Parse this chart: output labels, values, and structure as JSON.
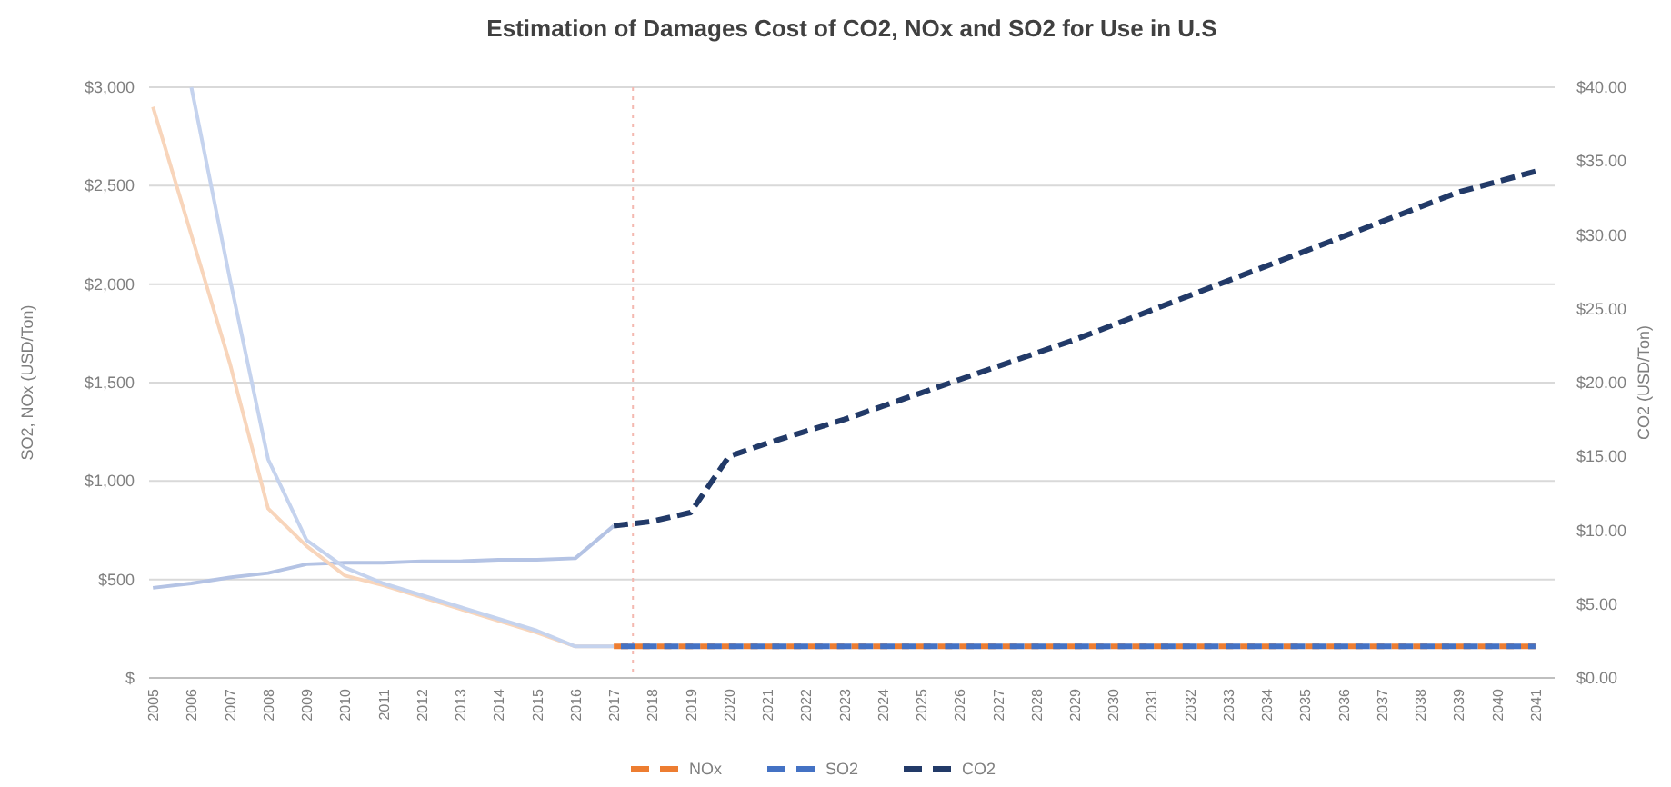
{
  "chart_data": {
    "type": "line",
    "title": "Estimation of Damages Cost of CO2, NOx and SO2 for Use in U.S",
    "ylabel": "SO2, NOx (USD/Ton)",
    "y2label": "CO2 (USD/Ton)",
    "xlim": [
      2004.9,
      2041.5
    ],
    "xticks": [
      2005,
      2006,
      2007,
      2008,
      2009,
      2010,
      2011,
      2012,
      2013,
      2014,
      2015,
      2016,
      2017,
      2018,
      2019,
      2020,
      2021,
      2022,
      2023,
      2024,
      2025,
      2026,
      2027,
      2028,
      2029,
      2030,
      2031,
      2032,
      2033,
      2034,
      2035,
      2036,
      2037,
      2038,
      2039,
      2040,
      2041
    ],
    "ylim": [
      0,
      3000
    ],
    "yticks": [
      {
        "value": 0,
        "label": "$"
      },
      {
        "value": 500,
        "label": "$500"
      },
      {
        "value": 1000,
        "label": "$1,000"
      },
      {
        "value": 1500,
        "label": "$1,500"
      },
      {
        "value": 2000,
        "label": "$2,000"
      },
      {
        "value": 2500,
        "label": "$2,500"
      },
      {
        "value": 3000,
        "label": "$3,000"
      }
    ],
    "y2lim": [
      0,
      40
    ],
    "y2ticks": [
      {
        "value": 0,
        "label": "$0.00"
      },
      {
        "value": 5,
        "label": "$5.00"
      },
      {
        "value": 10,
        "label": "$10.00"
      },
      {
        "value": 15,
        "label": "$15.00"
      },
      {
        "value": 20,
        "label": "$20.00"
      },
      {
        "value": 25,
        "label": "$25.00"
      },
      {
        "value": 30,
        "label": "$30.00"
      },
      {
        "value": 35,
        "label": "$35.00"
      },
      {
        "value": 40,
        "label": "$40.00"
      }
    ],
    "grid": "y",
    "legend": "bottom",
    "marker": "none",
    "ref_lines": [
      {
        "axis": "x",
        "value": 2017.5,
        "color": "#f4b8b0",
        "line_style": "dotted"
      }
    ],
    "series": [
      {
        "color": "#b4c3e4",
        "axis": "y2",
        "line_style": "solid",
        "x": [
          2005,
          2006,
          2007,
          2008,
          2009,
          2010,
          2011,
          2012,
          2013,
          2014,
          2015,
          2016,
          2017
        ],
        "values": [
          6.1,
          6.4,
          6.8,
          7.1,
          7.7,
          7.8,
          7.8,
          7.9,
          7.9,
          8.0,
          8.0,
          8.1,
          10.3
        ]
      },
      {
        "color": "#f8d5bb",
        "line_style": "solid",
        "x": [
          2005,
          2006,
          2007,
          2008,
          2009,
          2010,
          2011,
          2012,
          2013,
          2014,
          2015,
          2016,
          2017
        ],
        "values": [
          2900,
          2250,
          1600,
          860,
          670,
          520,
          470,
          410,
          350,
          290,
          230,
          160,
          160
        ]
      },
      {
        "color": "#c5d3ee",
        "line_style": "solid",
        "x": [
          2006,
          2007,
          2008,
          2009,
          2010,
          2011,
          2012,
          2013,
          2014,
          2015,
          2016,
          2017
        ],
        "values": [
          3000,
          2030,
          1110,
          700,
          560,
          480,
          420,
          360,
          300,
          240,
          160,
          160
        ]
      },
      {
        "name": "NOx",
        "color": "#ed7d31",
        "line_style": "dashed",
        "x": [
          2017,
          2018,
          2019,
          2020,
          2021,
          2022,
          2023,
          2024,
          2025,
          2026,
          2027,
          2028,
          2029,
          2030,
          2031,
          2032,
          2033,
          2034,
          2035,
          2036,
          2037,
          2038,
          2039,
          2040,
          2041
        ],
        "values": [
          160,
          160,
          160,
          160,
          160,
          160,
          160,
          160,
          160,
          160,
          160,
          160,
          160,
          160,
          160,
          160,
          160,
          160,
          160,
          160,
          160,
          160,
          160,
          160,
          160
        ]
      },
      {
        "name": "SO2",
        "color": "#4472c4",
        "line_style": "dashed",
        "x": [
          2017,
          2018,
          2019,
          2020,
          2021,
          2022,
          2023,
          2024,
          2025,
          2026,
          2027,
          2028,
          2029,
          2030,
          2031,
          2032,
          2033,
          2034,
          2035,
          2036,
          2037,
          2038,
          2039,
          2040,
          2041
        ],
        "values": [
          160,
          160,
          160,
          160,
          160,
          160,
          160,
          160,
          160,
          160,
          160,
          160,
          160,
          160,
          160,
          160,
          160,
          160,
          160,
          160,
          160,
          160,
          160,
          160,
          160
        ]
      },
      {
        "name": "CO2",
        "color": "#223a68",
        "axis": "y2",
        "line_style": "dashed",
        "x": [
          2017,
          2018,
          2019,
          2020,
          2021,
          2022,
          2023,
          2024,
          2025,
          2026,
          2027,
          2028,
          2029,
          2030,
          2031,
          2032,
          2033,
          2034,
          2035,
          2036,
          2037,
          2038,
          2039,
          2040,
          2041
        ],
        "values": [
          10.3,
          10.6,
          11.2,
          15.0,
          15.9,
          16.7,
          17.5,
          18.4,
          19.3,
          20.2,
          21.1,
          22.0,
          22.9,
          23.9,
          24.9,
          25.9,
          26.9,
          27.9,
          28.9,
          29.9,
          30.9,
          31.9,
          32.9,
          33.6,
          34.3
        ]
      }
    ]
  }
}
